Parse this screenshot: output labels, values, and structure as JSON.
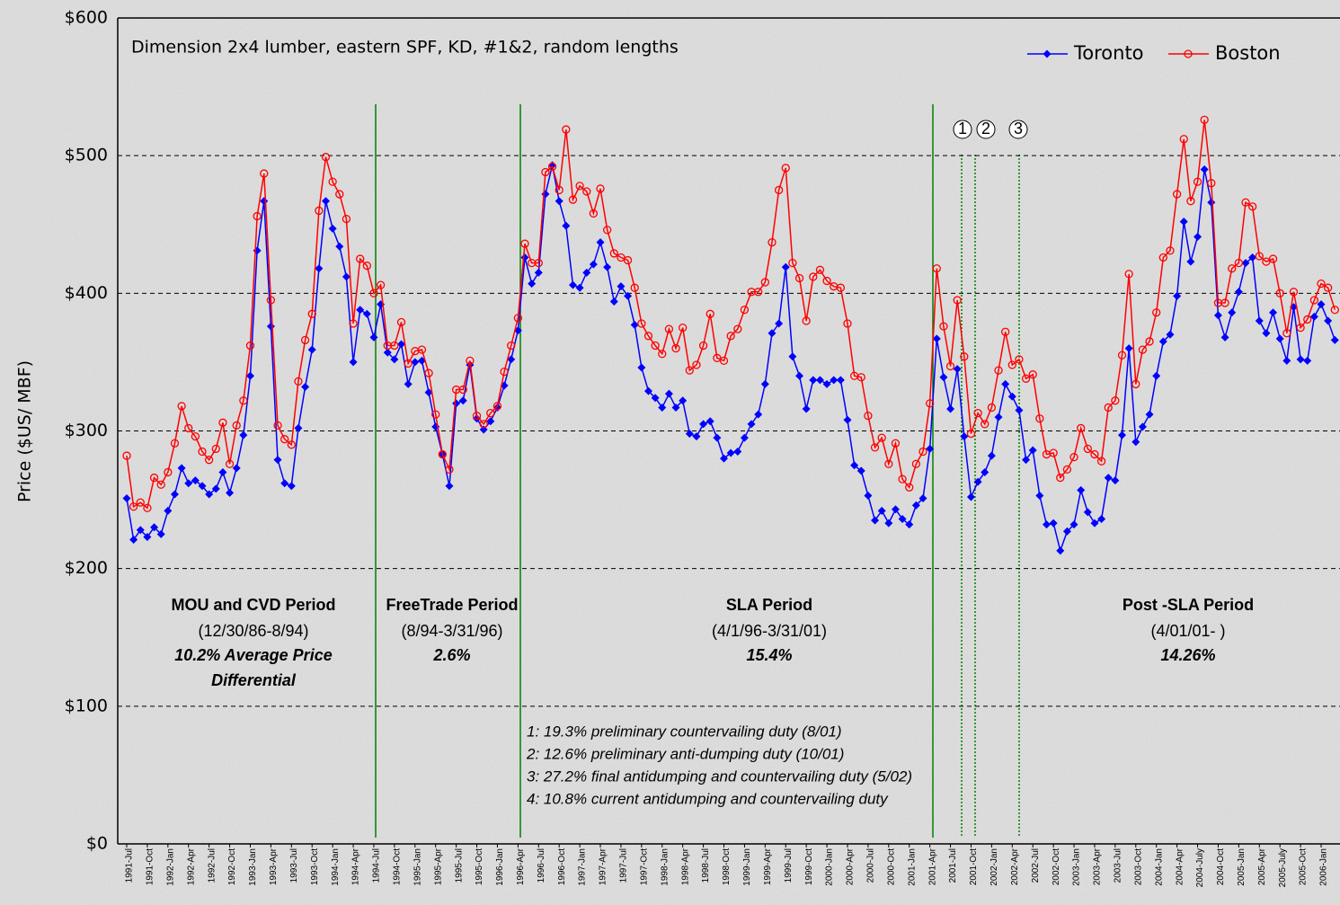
{
  "chart_data": {
    "type": "line",
    "title": "Dimension 2x4 lumber, eastern SPF, KD, #1&2, random lengths",
    "y_label": "Price ($US/ MBF)",
    "categories": [
      "1991-Jul",
      null,
      null,
      "1991-Oct",
      null,
      null,
      "1992-Jan",
      null,
      null,
      "1992-Apr",
      null,
      null,
      "1992-Jul",
      null,
      null,
      "1992-Oct",
      null,
      null,
      "1993-Jan",
      null,
      null,
      "1993-Apr",
      null,
      null,
      "1993-Jul",
      null,
      null,
      "1993-Oct",
      null,
      null,
      "1994-Jan",
      null,
      null,
      "1994-Apr",
      null,
      null,
      "1994-Jul",
      null,
      null,
      "1994-Oct",
      null,
      null,
      "1995-Jan",
      null,
      null,
      "1995-Apr",
      null,
      null,
      "1995-Jul",
      null,
      null,
      "1995-Oct",
      null,
      null,
      "1996-Jan",
      null,
      null,
      "1996-Apr",
      null,
      null,
      "1996-Jul",
      null,
      null,
      "1996-Oct",
      null,
      null,
      "1997-Jan",
      null,
      null,
      "1997-Apr",
      null,
      null,
      "1997-Jul",
      null,
      null,
      "1997-Oct",
      null,
      null,
      "1998-Jan",
      null,
      null,
      "1998-Apr",
      null,
      null,
      "1998-Jul",
      null,
      null,
      "1998-Oct",
      null,
      null,
      "1999-Jan",
      null,
      null,
      "1999-Apr",
      null,
      null,
      "1999-Jul",
      null,
      null,
      "1999-Oct",
      null,
      null,
      "2000-Jan",
      null,
      null,
      "2000-Apr",
      null,
      null,
      "2000-Jul",
      null,
      null,
      "2000-Oct",
      null,
      null,
      "2001-Jan",
      null,
      null,
      "2001-Apr",
      null,
      null,
      "2001-Jul",
      null,
      null,
      "2001-Oct",
      null,
      null,
      "2002-Jan",
      null,
      null,
      "2002-Apr",
      null,
      null,
      "2002-Jul",
      null,
      null,
      "2002-Oct",
      null,
      null,
      "2003-Jan",
      null,
      null,
      "2003-Apr",
      null,
      null,
      "2003-Jul",
      null,
      null,
      "2003-Oct",
      null,
      null,
      "2004-Jan",
      null,
      null,
      "2004-Apr",
      null,
      null,
      "2004-July",
      null,
      null,
      "2004-Oct",
      null,
      null,
      "2005-Jan",
      null,
      null,
      "2005-Apr",
      null,
      null,
      "2005-July",
      null,
      null,
      "2005-Oct",
      null,
      null,
      "2006-Jan",
      null,
      null
    ],
    "series": [
      {
        "name": "Toronto",
        "color": "#0000ff",
        "marker": "diamond",
        "values": [
          251,
          221,
          228,
          223,
          230,
          225,
          242,
          254,
          273,
          262,
          264,
          260,
          254,
          258,
          270,
          255,
          273,
          297,
          340,
          431,
          467,
          376,
          279,
          262,
          260,
          302,
          332,
          359,
          418,
          467,
          447,
          434,
          412,
          350,
          388,
          385,
          368,
          392,
          357,
          352,
          363,
          334,
          350,
          351,
          328,
          303,
          283,
          260,
          320,
          322,
          348,
          309,
          301,
          307,
          317,
          333,
          352,
          373,
          426,
          407,
          415,
          472,
          493,
          467,
          449,
          406,
          404,
          415,
          421,
          437,
          419,
          394,
          405,
          398,
          377,
          346,
          329,
          324,
          317,
          327,
          317,
          322,
          298,
          296,
          305,
          307,
          295,
          280,
          284,
          285,
          295,
          305,
          312,
          334,
          371,
          378,
          419,
          354,
          340,
          316,
          337,
          337,
          334,
          337,
          337,
          308,
          275,
          271,
          253,
          235,
          242,
          233,
          243,
          236,
          232,
          246,
          251,
          287,
          367,
          339,
          316,
          345,
          296,
          252,
          263,
          270,
          282,
          310,
          334,
          325,
          315,
          279,
          286,
          253,
          232,
          233,
          213,
          227,
          232,
          257,
          241,
          233,
          236,
          266,
          264,
          297,
          360,
          292,
          303,
          312,
          340,
          365,
          370,
          398,
          452,
          423,
          441,
          490,
          466,
          384,
          368,
          386,
          401,
          422,
          426,
          380,
          371,
          386,
          367,
          351,
          390,
          352,
          351,
          383,
          392,
          380,
          366
        ]
      },
      {
        "name": "Boston",
        "color": "#ff0000",
        "marker": "circle",
        "values": [
          282,
          245,
          248,
          244,
          266,
          261,
          270,
          291,
          318,
          302,
          296,
          285,
          279,
          287,
          306,
          276,
          304,
          322,
          362,
          456,
          487,
          395,
          304,
          294,
          290,
          336,
          366,
          385,
          460,
          499,
          481,
          472,
          454,
          378,
          425,
          420,
          400,
          406,
          362,
          362,
          379,
          349,
          358,
          359,
          342,
          312,
          283,
          272,
          330,
          330,
          351,
          311,
          305,
          313,
          318,
          343,
          362,
          382,
          436,
          422,
          422,
          488,
          492,
          475,
          519,
          468,
          478,
          474,
          458,
          476,
          446,
          429,
          426,
          424,
          404,
          378,
          369,
          362,
          356,
          374,
          360,
          375,
          344,
          348,
          362,
          385,
          353,
          351,
          369,
          374,
          388,
          401,
          401,
          408,
          437,
          475,
          491,
          422,
          411,
          380,
          412,
          417,
          409,
          405,
          404,
          378,
          340,
          339,
          311,
          288,
          295,
          276,
          291,
          265,
          259,
          276,
          285,
          320,
          418,
          376,
          347,
          395,
          354,
          298,
          313,
          305,
          317,
          344,
          372,
          348,
          352,
          338,
          341,
          309,
          283,
          284,
          266,
          272,
          281,
          302,
          287,
          283,
          278,
          317,
          322,
          355,
          414,
          334,
          359,
          365,
          386,
          426,
          431,
          472,
          512,
          467,
          481,
          526,
          480,
          393,
          393,
          418,
          422,
          466,
          463,
          427,
          423,
          425,
          400,
          371,
          401,
          375,
          381,
          395,
          407,
          404,
          388
        ]
      }
    ],
    "ylim": [
      0,
      600
    ],
    "yticks": [
      {
        "value": 0,
        "label": "$0"
      },
      {
        "value": 100,
        "label": "$100"
      },
      {
        "value": 200,
        "label": "$200"
      },
      {
        "value": 300,
        "label": "$300"
      },
      {
        "value": 400,
        "label": "$400"
      },
      {
        "value": 500,
        "label": "$500"
      },
      {
        "value": 600,
        "label": "$600"
      }
    ],
    "grid": true,
    "legend": "upper right",
    "periods": [
      {
        "title": "MOU and CVD Period",
        "dates": "(12/30/86-8/94)",
        "note": [
          "10.2% Average Price",
          "Differential"
        ]
      },
      {
        "title": "FreeTrade Period",
        "dates": "(8/94-3/31/96)",
        "note": [
          "2.6%"
        ]
      },
      {
        "title": "SLA Period",
        "dates": "(4/1/96-3/31/01)",
        "note": [
          "15.4%"
        ]
      },
      {
        "title": "Post -SLA Period",
        "dates": "(4/01/01-   )",
        "note": [
          "14.26%"
        ]
      }
    ],
    "event_markers": [
      "1",
      "2",
      "3"
    ],
    "footnotes": [
      "1: 19.3% preliminary countervailing duty (8/01)",
      "2: 12.6% preliminary anti-dumping duty (10/01)",
      "3: 27.2% final antidumping and countervailing duty (5/02)",
      "4: 10.8% current antidumping and countervailing duty"
    ]
  }
}
